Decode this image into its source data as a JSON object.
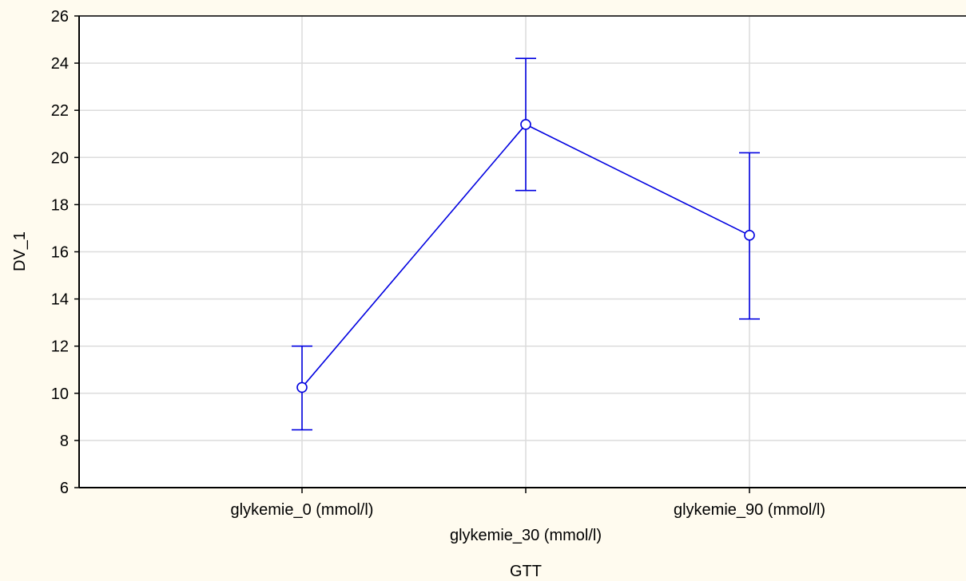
{
  "chart_data": {
    "type": "line",
    "title": "",
    "xlabel": "GTT",
    "ylabel": "DV_1",
    "ylim": [
      6,
      26
    ],
    "yticks": [
      6,
      8,
      10,
      12,
      14,
      16,
      18,
      20,
      22,
      24,
      26
    ],
    "grid": true,
    "categories": [
      "glykemie_0 (mmol/l)",
      "glykemie_30 (mmol/l)",
      "glykemie_90 (mmol/l)"
    ],
    "series": [
      {
        "values": [
          10.25,
          21.4,
          16.7
        ],
        "error_low": [
          8.45,
          18.6,
          13.15
        ],
        "error_high": [
          12.0,
          24.2,
          20.2
        ]
      }
    ],
    "colors": {
      "series": "#0000e0",
      "grid": "#dcdcdc",
      "background": "#fffbef",
      "plot_background": "#ffffff"
    }
  }
}
